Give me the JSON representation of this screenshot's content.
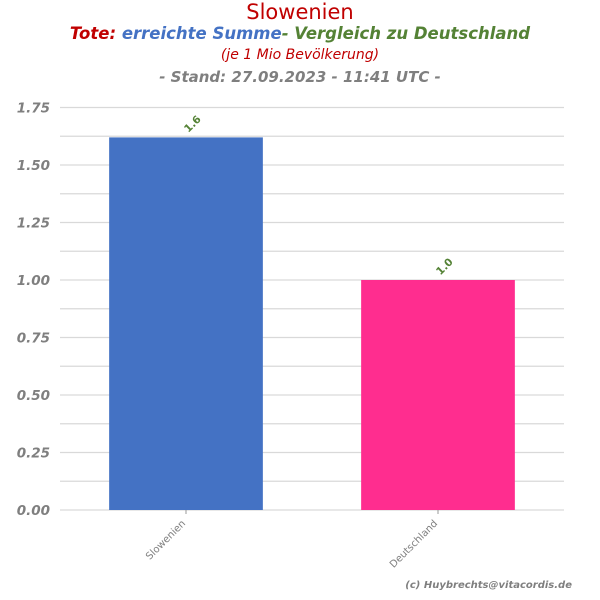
{
  "titles": {
    "main": "Slowenien",
    "sub_prefix": "Tote:",
    "sub_middle": "erreichte Summe",
    "sub_suffix": "- Vergleich zu Deutschland",
    "unit_note": "(je 1 Mio Bevölkerung)",
    "stand": "- Stand: 27.09.2023 - 11:41 UTC -"
  },
  "credit": "(c) Huybrechts@vitacordis.de",
  "colors": {
    "title_red": "#c00000",
    "summe_blue": "#4472c4",
    "vergleich_green": "#548235",
    "grey_text": "#7f7f7f",
    "grid": "#d9d9d9"
  },
  "chart_data": {
    "type": "bar",
    "categories": [
      "Slowenien",
      "Deutschland"
    ],
    "values": [
      1.62,
      1.0
    ],
    "value_labels": [
      "1.6",
      "1.0"
    ],
    "bar_colors": [
      "#4472c4",
      "#ff2d8f"
    ],
    "ylim": [
      0,
      1.8
    ],
    "yticks": [
      0,
      0.25,
      0.5,
      0.75,
      1.0,
      1.25,
      1.5,
      1.75
    ],
    "ytick_labels": [
      "0.00",
      "0.25",
      "0.50",
      "0.75",
      "1.00",
      "1.25",
      "1.50",
      "1.75"
    ],
    "grid": true,
    "xlabel": "",
    "ylabel": ""
  }
}
